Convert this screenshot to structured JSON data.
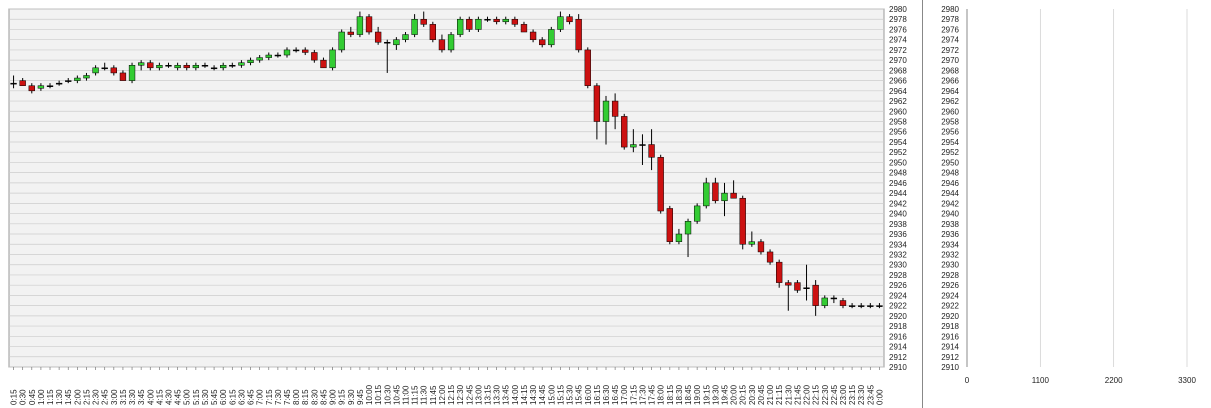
{
  "chart_data": [
    {
      "type": "candlestick",
      "price_axis": {
        "min": 2910,
        "max": 2980,
        "ticks": [
          2910,
          2912,
          2914,
          2916,
          2918,
          2920,
          2922,
          2924,
          2926,
          2928,
          2930,
          2932,
          2934,
          2936,
          2938,
          2940,
          2942,
          2944,
          2946,
          2948,
          2950,
          2952,
          2954,
          2956,
          2958,
          2960,
          2962,
          2964,
          2966,
          2968,
          2970,
          2972,
          2974,
          2976,
          2978,
          2980
        ]
      },
      "time_labels": [
        "0:15",
        "0:30",
        "0:45",
        "1:00",
        "1:15",
        "1:30",
        "1:45",
        "2:00",
        "2:15",
        "2:30",
        "2:45",
        "3:00",
        "3:15",
        "3:30",
        "3:45",
        "4:00",
        "4:15",
        "4:30",
        "4:45",
        "5:00",
        "5:15",
        "5:30",
        "5:45",
        "6:00",
        "6:15",
        "6:30",
        "6:45",
        "7:00",
        "7:15",
        "7:30",
        "7:45",
        "8:00",
        "8:15",
        "8:30",
        "8:45",
        "9:00",
        "9:15",
        "9:30",
        "9:45",
        "10:00",
        "10:15",
        "10:30",
        "10:45",
        "11:00",
        "11:15",
        "11:30",
        "11:45",
        "12:00",
        "12:15",
        "12:30",
        "12:45",
        "13:00",
        "13:15",
        "13:30",
        "13:45",
        "14:00",
        "14:15",
        "14:30",
        "14:45",
        "15:00",
        "15:15",
        "15:30",
        "15:45",
        "16:00",
        "16:15",
        "16:30",
        "16:45",
        "17:00",
        "17:15",
        "17:30",
        "17:45",
        "18:00",
        "18:15",
        "18:30",
        "18:45",
        "19:00",
        "19:15",
        "19:30",
        "19:45",
        "20:00",
        "20:15",
        "20:30",
        "20:45",
        "21:00",
        "21:15",
        "21:30",
        "21:45",
        "22:00",
        "22:15",
        "22:30",
        "22:45",
        "23:00",
        "23:15",
        "23:30",
        "23:45",
        "0:00"
      ],
      "candles": [
        {
          "o": 2965.5,
          "h": 2967,
          "l": 2964.5,
          "c": 2965.5
        },
        {
          "o": 2966,
          "h": 2966.5,
          "l": 2965,
          "c": 2965
        },
        {
          "o": 2965,
          "h": 2965.5,
          "l": 2963.5,
          "c": 2964
        },
        {
          "o": 2964.5,
          "h": 2965.5,
          "l": 2964,
          "c": 2965
        },
        {
          "o": 2965,
          "h": 2965.5,
          "l": 2964.5,
          "c": 2965
        },
        {
          "o": 2965.5,
          "h": 2966,
          "l": 2965,
          "c": 2965.5
        },
        {
          "o": 2966,
          "h": 2966.5,
          "l": 2965.5,
          "c": 2966
        },
        {
          "o": 2966,
          "h": 2967,
          "l": 2965.5,
          "c": 2966.5
        },
        {
          "o": 2966.5,
          "h": 2967.5,
          "l": 2966,
          "c": 2967
        },
        {
          "o": 2967.5,
          "h": 2969,
          "l": 2967,
          "c": 2968.5
        },
        {
          "o": 2968.5,
          "h": 2969.5,
          "l": 2968,
          "c": 2968.5
        },
        {
          "o": 2968.5,
          "h": 2969,
          "l": 2967,
          "c": 2967.5
        },
        {
          "o": 2967.5,
          "h": 2968,
          "l": 2966,
          "c": 2966
        },
        {
          "o": 2966,
          "h": 2969.5,
          "l": 2965.5,
          "c": 2969
        },
        {
          "o": 2969,
          "h": 2970,
          "l": 2968,
          "c": 2969.5
        },
        {
          "o": 2969.5,
          "h": 2970,
          "l": 2968,
          "c": 2968.5
        },
        {
          "o": 2968.5,
          "h": 2969.5,
          "l": 2968,
          "c": 2969
        },
        {
          "o": 2969,
          "h": 2969.5,
          "l": 2968.5,
          "c": 2969
        },
        {
          "o": 2968.5,
          "h": 2969.5,
          "l": 2968,
          "c": 2969
        },
        {
          "o": 2969,
          "h": 2969.5,
          "l": 2968,
          "c": 2968.5
        },
        {
          "o": 2968.5,
          "h": 2969.5,
          "l": 2968,
          "c": 2969
        },
        {
          "o": 2969,
          "h": 2969.5,
          "l": 2968.5,
          "c": 2969
        },
        {
          "o": 2968.5,
          "h": 2969,
          "l": 2968,
          "c": 2968.5
        },
        {
          "o": 2968.5,
          "h": 2969.5,
          "l": 2968,
          "c": 2969
        },
        {
          "o": 2969,
          "h": 2969.5,
          "l": 2968.5,
          "c": 2969
        },
        {
          "o": 2969,
          "h": 2970,
          "l": 2968.5,
          "c": 2969.5
        },
        {
          "o": 2969.5,
          "h": 2970.5,
          "l": 2969,
          "c": 2970
        },
        {
          "o": 2970,
          "h": 2971,
          "l": 2969.5,
          "c": 2970.5
        },
        {
          "o": 2970.5,
          "h": 2971.5,
          "l": 2970,
          "c": 2971
        },
        {
          "o": 2971,
          "h": 2971.5,
          "l": 2970.5,
          "c": 2971
        },
        {
          "o": 2971,
          "h": 2972.5,
          "l": 2970.5,
          "c": 2972
        },
        {
          "o": 2972,
          "h": 2972.5,
          "l": 2971.5,
          "c": 2972
        },
        {
          "o": 2972,
          "h": 2972.5,
          "l": 2971,
          "c": 2971.5
        },
        {
          "o": 2971.5,
          "h": 2972,
          "l": 2969.5,
          "c": 2970
        },
        {
          "o": 2970,
          "h": 2970.5,
          "l": 2968.5,
          "c": 2968.5
        },
        {
          "o": 2968.5,
          "h": 2972.5,
          "l": 2968,
          "c": 2972
        },
        {
          "o": 2972,
          "h": 2976,
          "l": 2971.5,
          "c": 2975.5
        },
        {
          "o": 2975.5,
          "h": 2976.5,
          "l": 2974.5,
          "c": 2975
        },
        {
          "o": 2975,
          "h": 2979.5,
          "l": 2974.5,
          "c": 2978.5
        },
        {
          "o": 2978.5,
          "h": 2979,
          "l": 2975,
          "c": 2975.5
        },
        {
          "o": 2975.5,
          "h": 2976.5,
          "l": 2973,
          "c": 2973.5
        },
        {
          "o": 2973.5,
          "h": 2974,
          "l": 2967.5,
          "c": 2973.5
        },
        {
          "o": 2973,
          "h": 2974.5,
          "l": 2972,
          "c": 2974
        },
        {
          "o": 2974,
          "h": 2975.5,
          "l": 2973.5,
          "c": 2975
        },
        {
          "o": 2975,
          "h": 2979,
          "l": 2974.5,
          "c": 2978
        },
        {
          "o": 2978,
          "h": 2979.5,
          "l": 2976.5,
          "c": 2977
        },
        {
          "o": 2977,
          "h": 2977.5,
          "l": 2973.5,
          "c": 2974
        },
        {
          "o": 2974,
          "h": 2975,
          "l": 2971.5,
          "c": 2972
        },
        {
          "o": 2972,
          "h": 2975.5,
          "l": 2971.5,
          "c": 2975
        },
        {
          "o": 2975,
          "h": 2978.5,
          "l": 2974.5,
          "c": 2978
        },
        {
          "o": 2978,
          "h": 2978.5,
          "l": 2975.5,
          "c": 2976
        },
        {
          "o": 2976,
          "h": 2978.5,
          "l": 2975.5,
          "c": 2978
        },
        {
          "o": 2978,
          "h": 2978.5,
          "l": 2977.5,
          "c": 2978
        },
        {
          "o": 2978,
          "h": 2978.5,
          "l": 2977,
          "c": 2977.5
        },
        {
          "o": 2977.5,
          "h": 2978.5,
          "l": 2977,
          "c": 2978
        },
        {
          "o": 2978,
          "h": 2978.5,
          "l": 2976.5,
          "c": 2977
        },
        {
          "o": 2977,
          "h": 2977.5,
          "l": 2975.5,
          "c": 2975.5
        },
        {
          "o": 2975.5,
          "h": 2976,
          "l": 2973.5,
          "c": 2974
        },
        {
          "o": 2974,
          "h": 2974.5,
          "l": 2972.5,
          "c": 2973
        },
        {
          "o": 2973,
          "h": 2976.5,
          "l": 2972.5,
          "c": 2976
        },
        {
          "o": 2976,
          "h": 2979.5,
          "l": 2975.5,
          "c": 2978.5
        },
        {
          "o": 2978.5,
          "h": 2979,
          "l": 2977,
          "c": 2977.5
        },
        {
          "o": 2978,
          "h": 2979,
          "l": 2971.5,
          "c": 2972
        },
        {
          "o": 2972,
          "h": 2972.5,
          "l": 2964.5,
          "c": 2965
        },
        {
          "o": 2965,
          "h": 2965.5,
          "l": 2954.5,
          "c": 2958
        },
        {
          "o": 2958,
          "h": 2963,
          "l": 2953.5,
          "c": 2962
        },
        {
          "o": 2962,
          "h": 2963.5,
          "l": 2956.5,
          "c": 2959
        },
        {
          "o": 2959,
          "h": 2959.5,
          "l": 2952.5,
          "c": 2953
        },
        {
          "o": 2953,
          "h": 2956.5,
          "l": 2952,
          "c": 2953.5
        },
        {
          "o": 2953.5,
          "h": 2955.5,
          "l": 2949.5,
          "c": 2953.5
        },
        {
          "o": 2953.5,
          "h": 2956.5,
          "l": 2948.5,
          "c": 2951
        },
        {
          "o": 2951,
          "h": 2951.5,
          "l": 2940,
          "c": 2940.5
        },
        {
          "o": 2941,
          "h": 2941.5,
          "l": 2934,
          "c": 2934.5
        },
        {
          "o": 2934.5,
          "h": 2937,
          "l": 2934,
          "c": 2936
        },
        {
          "o": 2936,
          "h": 2939,
          "l": 2931.5,
          "c": 2938.5
        },
        {
          "o": 2938.5,
          "h": 2942,
          "l": 2938,
          "c": 2941.5
        },
        {
          "o": 2941.5,
          "h": 2947,
          "l": 2941,
          "c": 2946
        },
        {
          "o": 2946,
          "h": 2947,
          "l": 2942,
          "c": 2942.5
        },
        {
          "o": 2942.5,
          "h": 2946,
          "l": 2939.5,
          "c": 2944
        },
        {
          "o": 2944,
          "h": 2946.5,
          "l": 2943,
          "c": 2943
        },
        {
          "o": 2943,
          "h": 2943.5,
          "l": 2933,
          "c": 2934
        },
        {
          "o": 2934,
          "h": 2936.5,
          "l": 2933.5,
          "c": 2934.5
        },
        {
          "o": 2934.5,
          "h": 2935,
          "l": 2932,
          "c": 2932.5
        },
        {
          "o": 2932.5,
          "h": 2933,
          "l": 2930,
          "c": 2930.5
        },
        {
          "o": 2930.5,
          "h": 2931,
          "l": 2925.5,
          "c": 2926.5
        },
        {
          "o": 2926.5,
          "h": 2927,
          "l": 2921,
          "c": 2926
        },
        {
          "o": 2926.5,
          "h": 2927,
          "l": 2924.5,
          "c": 2925
        },
        {
          "o": 2925.5,
          "h": 2930,
          "l": 2923,
          "c": 2925.5
        },
        {
          "o": 2926,
          "h": 2927,
          "l": 2920,
          "c": 2922
        },
        {
          "o": 2922,
          "h": 2924,
          "l": 2921.5,
          "c": 2923.5
        },
        {
          "o": 2923.5,
          "h": 2924,
          "l": 2922.5,
          "c": 2923.5
        },
        {
          "o": 2923,
          "h": 2923.5,
          "l": 2921.5,
          "c": 2922
        },
        {
          "o": 2922,
          "h": 2922.5,
          "l": 2921.5,
          "c": 2922
        },
        {
          "o": 2922,
          "h": 2922.5,
          "l": 2921.5,
          "c": 2922
        },
        {
          "o": 2922,
          "h": 2922.5,
          "l": 2921.5,
          "c": 2922
        },
        {
          "o": 2922,
          "h": 2922.5,
          "l": 2921.5,
          "c": 2922
        }
      ],
      "volume": [
        0,
        0,
        0,
        0,
        0,
        0,
        0,
        0,
        0,
        0,
        0,
        0,
        0,
        0,
        0,
        0,
        0,
        0,
        0,
        0,
        0,
        0,
        0,
        0,
        0,
        0,
        0,
        0,
        0,
        0,
        0,
        0,
        0,
        0,
        0,
        0,
        0,
        0,
        0,
        0,
        0,
        0,
        0,
        0,
        0,
        0,
        0,
        0,
        0,
        0,
        0,
        0,
        0,
        0,
        0,
        0,
        0,
        0,
        0,
        0,
        0,
        0,
        0,
        0,
        0,
        0,
        0,
        0,
        0,
        0,
        0,
        0,
        0,
        0,
        0,
        0,
        0,
        0,
        0,
        0,
        0,
        0,
        0,
        0,
        0,
        0,
        0,
        0,
        0,
        0,
        0,
        0,
        0,
        0,
        0,
        0
      ],
      "colors": {
        "up": "#33cc33",
        "down": "#cc1111",
        "wick": "#000000",
        "volume": "#4f81bd",
        "grid": "#cccccc",
        "plot_bg": "#f2f2f2"
      }
    },
    {
      "type": "horizontal_bar",
      "price_axis": {
        "min": 2910,
        "max": 2980,
        "ticks": [
          2910,
          2912,
          2914,
          2916,
          2918,
          2920,
          2922,
          2924,
          2926,
          2928,
          2930,
          2932,
          2934,
          2936,
          2938,
          2940,
          2942,
          2944,
          2946,
          2948,
          2950,
          2952,
          2954,
          2956,
          2958,
          2960,
          2962,
          2964,
          2966,
          2968,
          2970,
          2972,
          2974,
          2976,
          2978,
          2980
        ]
      },
      "x_axis": {
        "min": 0,
        "max": 3300,
        "ticks": [
          0,
          1100,
          2200,
          3300
        ]
      },
      "grid": true,
      "colors": {
        "bar": "#4f81bd",
        "grid": "#cccccc"
      }
    }
  ]
}
